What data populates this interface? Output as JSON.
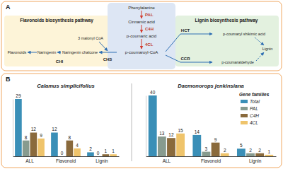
{
  "diagram": {
    "label": "A",
    "center": [
      "Phenylalanine",
      "Cinnamic acid",
      "p-coumaric acid",
      "p-coumaroyl-CoA"
    ],
    "center_enzymes": [
      "PAL",
      "C4H",
      "4CL"
    ],
    "flavonoid": {
      "title": "Flavonoids biosynthesis pathway",
      "compounds": [
        "Flavonoids",
        "Naringenin",
        "Naringenin chalcone"
      ],
      "enzymes": [
        "CHI",
        "CHS"
      ],
      "substrate": "3 malonyl CoA"
    },
    "lignin": {
      "title": "Lignin biosynthesis pathway",
      "compounds": [
        "p-coumaryl shikimic acid",
        "p-coumaraldehyde",
        "Lignin"
      ],
      "enzymes": [
        "HCT",
        "CCR"
      ]
    }
  },
  "panel_label": "B",
  "chart_data": [
    {
      "type": "bar",
      "title": "Calamus simplicifolius",
      "categories": [
        "ALL",
        "Flavonoid",
        "Lignin"
      ],
      "series": [
        {
          "name": "Total",
          "color": "#3a8fb7",
          "values": [
            29,
            12,
            2
          ]
        },
        {
          "name": "PAL",
          "color": "#879b8f",
          "values": [
            8,
            0,
            0
          ]
        },
        {
          "name": "C4H",
          "color": "#8a6a3c",
          "values": [
            12,
            8,
            1
          ]
        },
        {
          "name": "4CL",
          "color": "#efc46b",
          "values": [
            9,
            4,
            1
          ]
        }
      ],
      "ylim": [
        0,
        29
      ],
      "data_labels": true,
      "tick_labels": "x"
    },
    {
      "type": "bar",
      "title": "Daemonorops jenkinsiana",
      "categories": [
        "ALL",
        "Flavonoid",
        "Lignin"
      ],
      "series": [
        {
          "name": "Total",
          "color": "#3a8fb7",
          "values": [
            40,
            14,
            5
          ]
        },
        {
          "name": "PAL",
          "color": "#879b8f",
          "values": [
            13,
            3,
            2
          ]
        },
        {
          "name": "C4H",
          "color": "#8a6a3c",
          "values": [
            12,
            9,
            2
          ]
        },
        {
          "name": "4CL",
          "color": "#efc46b",
          "values": [
            15,
            2,
            1
          ]
        }
      ],
      "ylim": [
        0,
        40
      ],
      "data_labels": true,
      "tick_labels": "x",
      "legend": "right",
      "legend_title": "Gene families"
    }
  ]
}
